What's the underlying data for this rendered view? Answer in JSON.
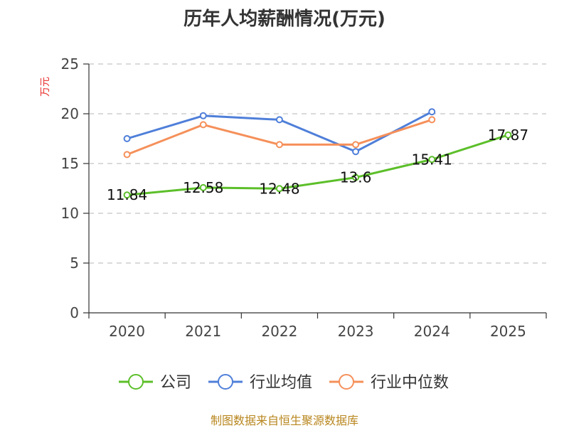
{
  "chart_data": {
    "type": "line",
    "title": "历年人均薪酬情况(万元)",
    "ylabel": "万元",
    "xlabel": "",
    "categories": [
      "2020",
      "2021",
      "2022",
      "2023",
      "2024",
      "2025"
    ],
    "ylim": [
      0,
      25
    ],
    "yticks": [
      0,
      5,
      10,
      15,
      20,
      25
    ],
    "grid": true,
    "legend_position": "bottom",
    "series": [
      {
        "name": "公司",
        "color": "#5cbf2a",
        "values": [
          11.84,
          12.58,
          12.48,
          13.6,
          15.41,
          17.87
        ],
        "labels": [
          "11.84",
          "12.58",
          "12.48",
          "13.6",
          "15.41",
          "17.87"
        ]
      },
      {
        "name": "行业均值",
        "color": "#4f7fd9",
        "values": [
          17.5,
          19.8,
          19.4,
          16.2,
          20.2,
          null
        ]
      },
      {
        "name": "行业中位数",
        "color": "#f5905a",
        "values": [
          15.9,
          18.9,
          16.9,
          16.9,
          19.4,
          null
        ]
      }
    ]
  },
  "source": "制图数据来自恒生聚源数据库"
}
